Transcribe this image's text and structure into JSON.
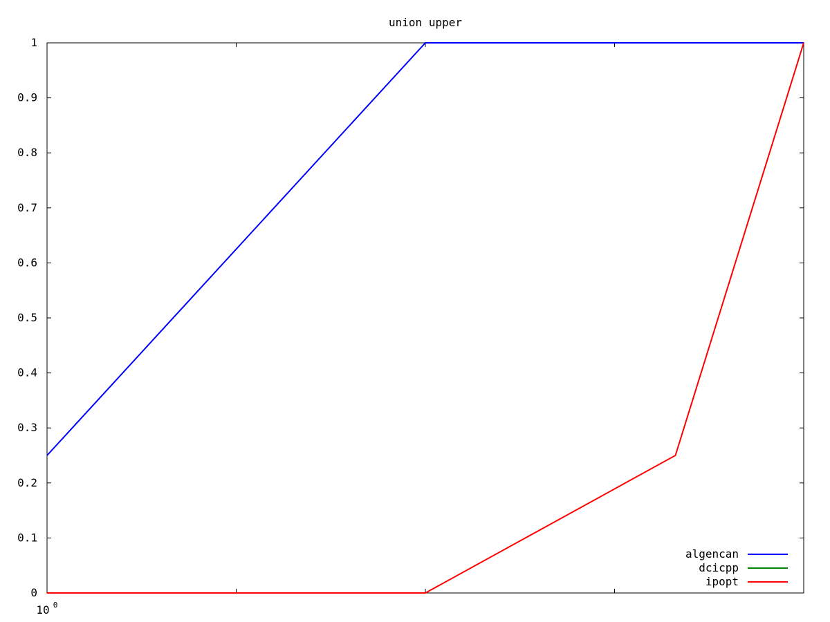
{
  "chart_data": {
    "type": "line",
    "title": "union upper",
    "xlabel": "",
    "ylabel": "",
    "xscale": "log",
    "xlim": [
      1,
      16
    ],
    "ylim": [
      0,
      1
    ],
    "xticks": [
      1,
      2,
      4,
      8,
      16
    ],
    "xtick_label_base": "10",
    "xtick_label_exp": "0",
    "yticks": [
      0,
      0.1,
      0.2,
      0.3,
      0.4,
      0.5,
      0.6,
      0.7,
      0.8,
      0.9,
      1
    ],
    "ytick_labels": [
      "0",
      "0.1",
      "0.2",
      "0.3",
      "0.4",
      "0.5",
      "0.6",
      "0.7",
      "0.8",
      "0.9",
      "1"
    ],
    "grid": false,
    "legend_position": "bottom-right",
    "series": [
      {
        "name": "algencan",
        "color": "#0000ff",
        "x": [
          1,
          4,
          16
        ],
        "y": [
          0.25,
          1,
          1
        ]
      },
      {
        "name": "dcicpp",
        "color": "#008000",
        "x": [],
        "y": []
      },
      {
        "name": "ipopt",
        "color": "#ff0000",
        "x": [
          1,
          4,
          10,
          16
        ],
        "y": [
          0,
          0,
          0.25,
          1
        ]
      }
    ]
  }
}
